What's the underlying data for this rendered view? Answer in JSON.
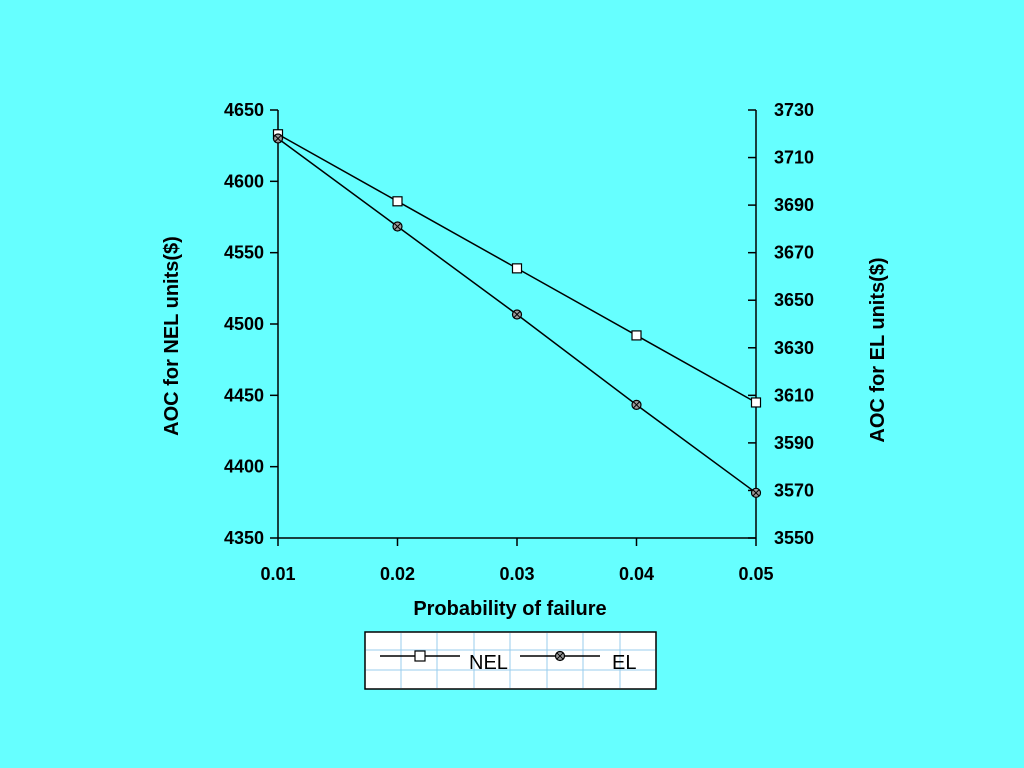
{
  "chart_data": {
    "type": "line",
    "xlabel": "Probability of failure",
    "ylabel_left": "AOC for NEL units($)",
    "ylabel_right": "AOC for EL units($)",
    "x": [
      0.01,
      0.02,
      0.03,
      0.04,
      0.05
    ],
    "x_tick_labels": [
      "0.01",
      "0.02",
      "0.03",
      "0.04",
      "0.05"
    ],
    "xlim": [
      0.01,
      0.05
    ],
    "ylim_left": [
      4350,
      4650
    ],
    "ylim_right": [
      3550,
      3730
    ],
    "y_ticks_left": [
      "4650",
      "4600",
      "4550",
      "4500",
      "4450",
      "4400",
      "4350"
    ],
    "y_ticks_right": [
      "3730",
      "3710",
      "3690",
      "3670",
      "3650",
      "3630",
      "3610",
      "3590",
      "3570",
      "3550"
    ],
    "grid": false,
    "legend_position": "bottom",
    "series": [
      {
        "name": "NEL",
        "axis": "left",
        "marker": "square",
        "values": [
          4633,
          4586,
          4539,
          4492,
          4445
        ]
      },
      {
        "name": "EL",
        "axis": "right",
        "marker": "circle-x",
        "values": [
          3718,
          3681,
          3644,
          3606,
          3569
        ]
      }
    ],
    "colors": {
      "background": "#66FFFF",
      "line": "#000000",
      "legend_bg": "#FFFFFF",
      "legend_grid": "#99CCEE"
    }
  }
}
